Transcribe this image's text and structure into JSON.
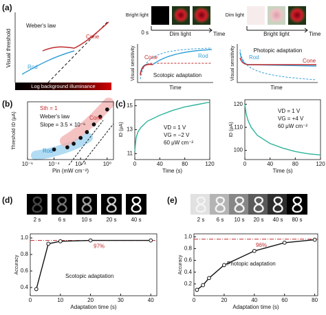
{
  "panel_labels": [
    "(a)",
    "(b)",
    "(c)",
    "(d)",
    "(e)"
  ],
  "schematic": {
    "threshold": {
      "title": "Weber's law",
      "cone": "Cone",
      "rod": "Rod",
      "ylabel": "Visual threshold",
      "xlabel": "Log background illuminance"
    },
    "scotopic": {
      "start": "Bright light",
      "t0": "0 s",
      "stimulus": "Dim light",
      "time_arrow": "Time",
      "ylabel": "Visual sensitivity",
      "cone": "Cone",
      "rod": "Rod",
      "caption": "Scotopic adaptation",
      "xlabel": "Time"
    },
    "photopic": {
      "start": "Dim light",
      "stimulus": "Bright light",
      "time_arrow": "Time",
      "ylabel": "Visual sensitivity",
      "caption": "Photopic adaptation",
      "rod": "Rod",
      "cone": "Cone",
      "xlabel": "Time"
    }
  },
  "chart_data": [
    {
      "type": "scatter",
      "xlog": true,
      "ylog": true,
      "color": "#111111",
      "xlabel": "Pin (mW cm⁻²)",
      "ylabel": "Threshold ID (μA)",
      "xlim": [
        1e-06,
        3
      ],
      "ylim": [
        0.3,
        300
      ],
      "xticks": [
        {
          "value": 1e-06,
          "label": "10⁻⁶"
        },
        {
          "value": 0.0001,
          "label": "10⁻⁴"
        },
        {
          "value": 0.01,
          "label": "10⁻²"
        },
        {
          "value": 1,
          "label": "10⁰"
        }
      ],
      "yticks": [],
      "x": [
        0.0001,
        0.001,
        0.003,
        0.01,
        0.03,
        0.1,
        0.3,
        1
      ],
      "values": [
        1,
        1.3,
        2,
        4,
        8,
        20,
        50,
        120
      ],
      "annotations": [
        "Sth = 1",
        "Weber's law",
        "Slope = 3.5 × 10⁻⁶",
        "Cone",
        "Rod"
      ]
    },
    {
      "type": "line",
      "color": "#2bb39a",
      "xlabel": "Time (s)",
      "ylabel": "ID (μA)",
      "xlim": [
        0,
        120
      ],
      "ylim": [
        10.5,
        15.5
      ],
      "xticks": [
        0,
        40,
        80,
        120
      ],
      "yticks": [
        11,
        13,
        15
      ],
      "x": [
        0,
        2,
        5,
        10,
        20,
        40,
        60,
        80,
        100,
        120
      ],
      "values": [
        11.2,
        12.3,
        12.8,
        13.2,
        13.7,
        14.2,
        14.6,
        14.9,
        15.1,
        15.3
      ],
      "annotations": [
        "VD = 1 V",
        "VG = −2 V",
        "60 μW cm⁻²"
      ]
    },
    {
      "type": "line",
      "color": "#2bb39a",
      "xlabel": "Time (s)",
      "ylabel": "ID (μA)",
      "xlim": [
        0,
        120
      ],
      "ylim": [
        96,
        122
      ],
      "xticks": [
        0,
        40,
        80,
        120
      ],
      "yticks": [
        100,
        110,
        120
      ],
      "x": [
        0,
        2,
        5,
        10,
        20,
        40,
        60,
        80,
        100,
        120
      ],
      "values": [
        120,
        116,
        113,
        110,
        106.5,
        103,
        101,
        99.5,
        98.5,
        98
      ],
      "annotations": [
        "VD = 1 V",
        "VG = +4 V",
        "60 μW cm⁻²"
      ]
    },
    {
      "type": "line",
      "markers": true,
      "color": "#111111",
      "xlabel": "Adaptation time (s)",
      "ylabel": "Accuracy",
      "xlim": [
        0,
        42
      ],
      "ylim": [
        0.3,
        1.05
      ],
      "xticks": [
        0,
        10,
        20,
        30,
        40
      ],
      "yticks": [
        0.4,
        0.6,
        0.8,
        {
          "value": 1.0,
          "label": "1.0"
        }
      ],
      "x": [
        2,
        6,
        10,
        20,
        40
      ],
      "values": [
        0.38,
        0.93,
        0.96,
        0.97,
        0.97
      ],
      "reference": {
        "value": 0.97,
        "label": "97%"
      },
      "annotations": [
        "Scotopic adaptation"
      ],
      "thumbnails": [
        "2 s",
        "6 s",
        "10 s",
        "20 s",
        "40 s"
      ]
    },
    {
      "type": "line",
      "markers": true,
      "color": "#111111",
      "xlabel": "Adaptation time (s)",
      "ylabel": "Accuracy",
      "xlim": [
        0,
        82
      ],
      "ylim": [
        0,
        1.05
      ],
      "xticks": [
        0,
        20,
        40,
        60,
        80
      ],
      "yticks": [
        0.2,
        0.4,
        0.6,
        0.8,
        {
          "value": 1.0,
          "label": "1.0"
        }
      ],
      "x": [
        2,
        6,
        10,
        20,
        40,
        60,
        80
      ],
      "values": [
        0.1,
        0.18,
        0.3,
        0.52,
        0.76,
        0.9,
        0.95
      ],
      "reference": {
        "value": 0.96,
        "label": "96%"
      },
      "annotations": [
        "Photopic adaptation"
      ],
      "thumbnails": [
        "2 s",
        "6 s",
        "10 s",
        "20 s",
        "40 s",
        "80 s"
      ]
    }
  ]
}
